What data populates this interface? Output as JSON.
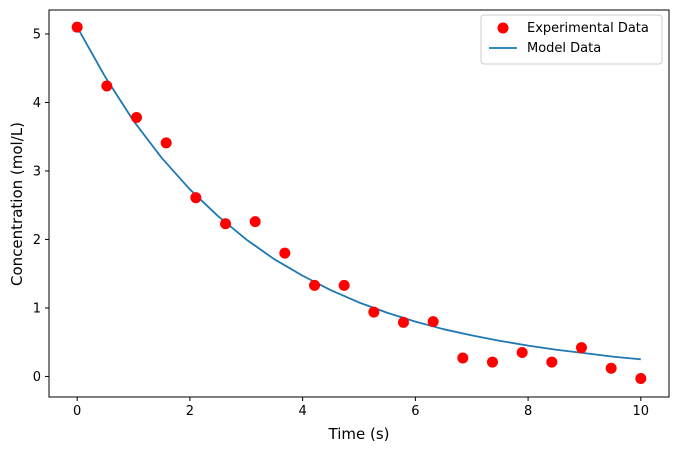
{
  "chart_data": {
    "type": "scatter",
    "xlabel": "Time (s)",
    "ylabel": "Concentration (mol/L)",
    "xlim": [
      -0.5,
      10.5
    ],
    "ylim": [
      -0.3,
      5.35
    ],
    "xticks": [
      0,
      2,
      4,
      6,
      8,
      10
    ],
    "yticks": [
      0,
      1,
      2,
      3,
      4,
      5
    ],
    "grid": false,
    "legend_position": "top-right",
    "series": [
      {
        "name": "Experimental Data",
        "kind": "scatter",
        "color": "#ff0000",
        "x": [
          0,
          0.526,
          1.053,
          1.579,
          2.105,
          2.632,
          3.158,
          3.684,
          4.211,
          4.737,
          5.263,
          5.789,
          6.316,
          6.842,
          7.368,
          7.895,
          8.421,
          8.947,
          9.474,
          10
        ],
        "y": [
          5.1,
          4.24,
          3.78,
          3.41,
          2.61,
          2.23,
          2.26,
          1.8,
          1.33,
          1.33,
          0.94,
          0.79,
          0.8,
          0.27,
          0.21,
          0.35,
          0.21,
          0.42,
          0.12,
          -0.03
        ]
      },
      {
        "name": "Model Data",
        "kind": "line",
        "color": "#1f77b4",
        "x": [
          0,
          0.5,
          1,
          1.5,
          2,
          2.5,
          3,
          3.5,
          4,
          4.5,
          5,
          5.5,
          6,
          6.5,
          7,
          7.5,
          8,
          8.5,
          9,
          9.5,
          10
        ],
        "y": [
          5.1,
          4.37,
          3.73,
          3.19,
          2.73,
          2.34,
          2.0,
          1.71,
          1.47,
          1.26,
          1.08,
          0.93,
          0.8,
          0.69,
          0.6,
          0.52,
          0.45,
          0.39,
          0.34,
          0.29,
          0.25
        ]
      }
    ]
  }
}
